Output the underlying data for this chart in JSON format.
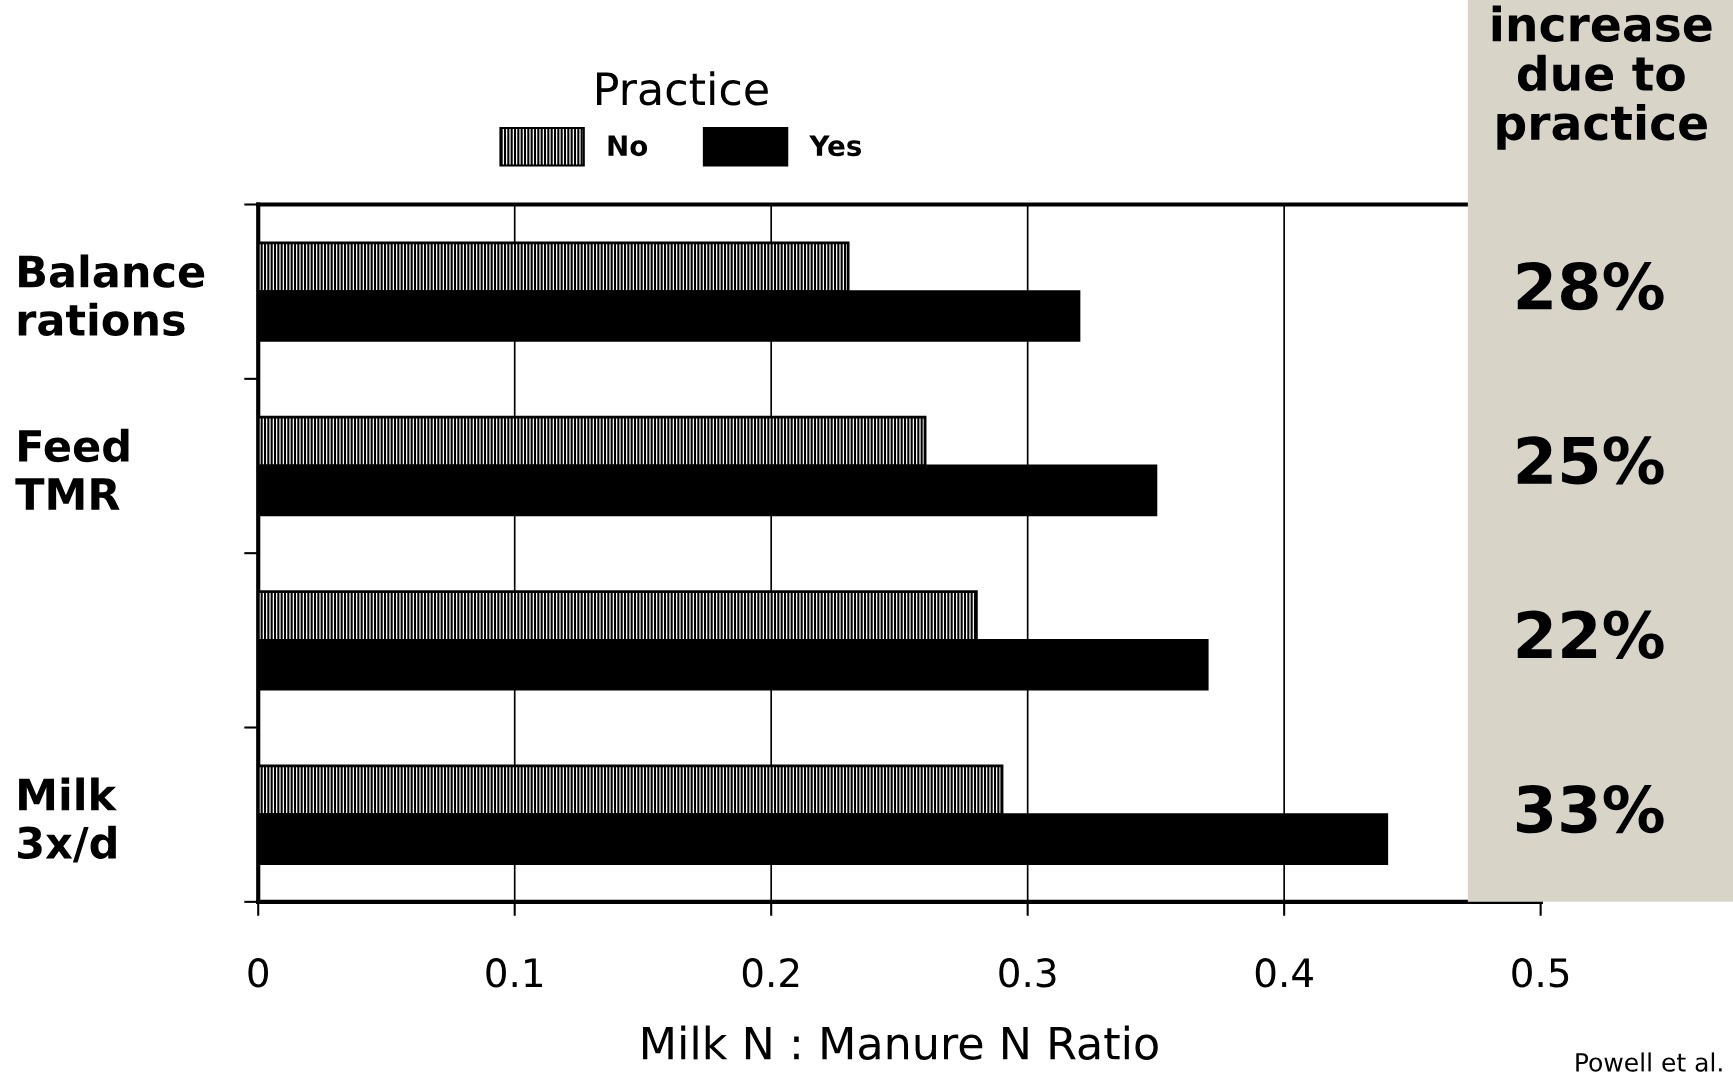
{
  "chart_data": {
    "type": "bar",
    "orientation": "horizontal",
    "categories": [
      "Balance\nrations",
      "Feed\nTMR",
      null,
      "Milk\n3x/d"
    ],
    "series": [
      {
        "name": "No",
        "color": "#000000",
        "values": [
          0.23,
          0.26,
          0.28,
          0.29
        ]
      },
      {
        "name": "Yes",
        "color": "#000000",
        "values": [
          0.32,
          0.35,
          0.37,
          0.44
        ]
      }
    ],
    "xlabel": "Milk N : Manure N Ratio",
    "legend_title": "Practice",
    "legend": "top",
    "xlim": [
      0,
      0.5
    ],
    "xticks": [
      0,
      0.1,
      0.2,
      0.3,
      0.4,
      0.5
    ],
    "grid": "x",
    "annotations": [
      "increase due to practice",
      "28%",
      "25%",
      "22%",
      "33%",
      "Powell et al."
    ]
  }
}
